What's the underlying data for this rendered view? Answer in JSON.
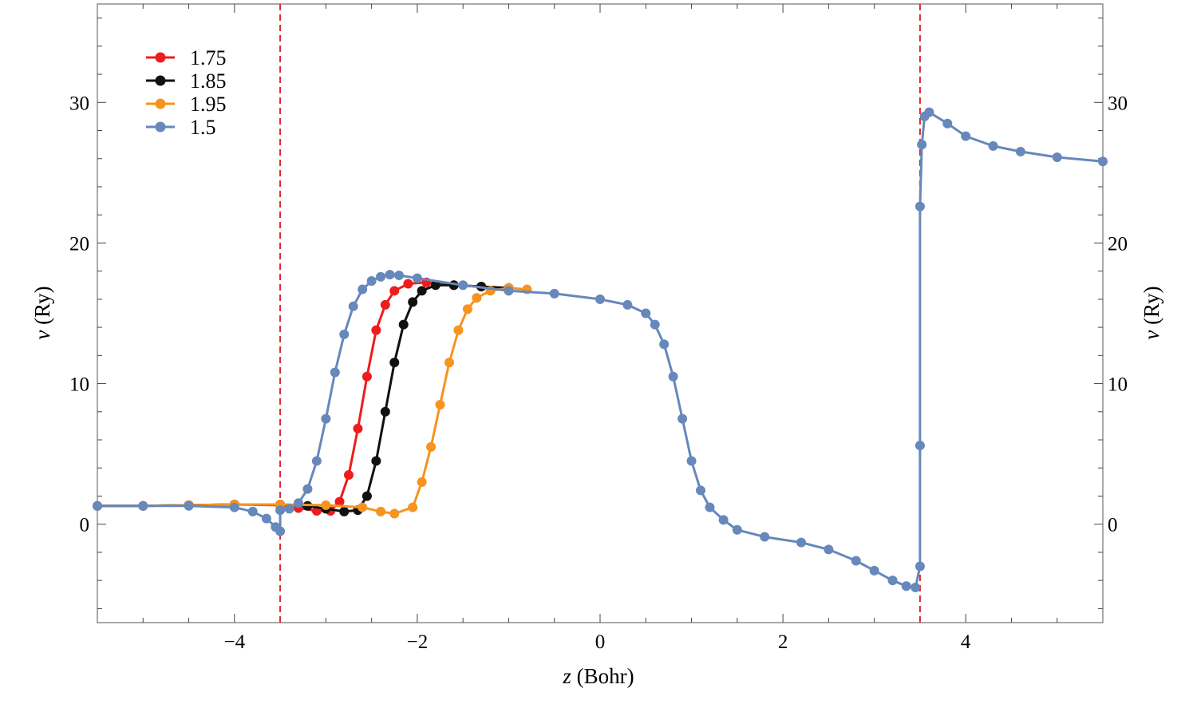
{
  "chart_data": {
    "type": "line",
    "xlabel_var": "z",
    "xlabel_unit": " (Bohr)",
    "ylabel_var": "v",
    "ylabel_unit": " (Ry)",
    "xlim": [
      -5.5,
      5.5
    ],
    "ylim": [
      -7,
      37
    ],
    "x_ticks": [
      -4,
      -2,
      0,
      2,
      4
    ],
    "x_tick_labels": [
      "−4",
      "−2",
      "0",
      "2",
      "4"
    ],
    "y_ticks": [
      0,
      10,
      20,
      30
    ],
    "y_tick_labels": [
      "0",
      "10",
      "20",
      "30"
    ],
    "grid": false,
    "legend_position": "top-left",
    "vlines": [
      -3.5,
      3.5
    ],
    "vline_color": "#e0262b",
    "series": [
      {
        "name": "1.75",
        "color": "#ee1c1c",
        "x": [
          -5.5,
          -5.0,
          -4.5,
          -4.0,
          -3.5,
          -3.3,
          -3.1,
          -2.95,
          -2.85,
          -2.75,
          -2.65,
          -2.55,
          -2.45,
          -2.35,
          -2.25,
          -2.1,
          -1.9,
          -1.6,
          -1.3,
          -1.0
        ],
        "y": [
          1.3,
          1.3,
          1.35,
          1.4,
          1.35,
          1.15,
          0.95,
          0.95,
          1.6,
          3.5,
          6.8,
          10.5,
          13.8,
          15.6,
          16.6,
          17.1,
          17.2,
          17.0,
          16.9,
          16.8
        ]
      },
      {
        "name": "1.85",
        "color": "#111111",
        "x": [
          -5.5,
          -5.0,
          -4.5,
          -4.0,
          -3.5,
          -3.2,
          -3.0,
          -2.8,
          -2.65,
          -2.55,
          -2.45,
          -2.35,
          -2.25,
          -2.15,
          -2.05,
          -1.95,
          -1.8,
          -1.6,
          -1.3,
          -1.0
        ],
        "y": [
          1.3,
          1.3,
          1.35,
          1.4,
          1.4,
          1.3,
          1.1,
          0.9,
          1.0,
          2.0,
          4.5,
          8.0,
          11.5,
          14.2,
          15.8,
          16.6,
          17.0,
          17.0,
          16.9,
          16.8
        ]
      },
      {
        "name": "1.95",
        "color": "#f7931e",
        "x": [
          -5.5,
          -5.0,
          -4.5,
          -4.0,
          -3.5,
          -3.0,
          -2.6,
          -2.4,
          -2.25,
          -2.05,
          -1.95,
          -1.85,
          -1.75,
          -1.65,
          -1.55,
          -1.45,
          -1.35,
          -1.2,
          -1.0,
          -0.8
        ],
        "y": [
          1.3,
          1.3,
          1.35,
          1.4,
          1.4,
          1.35,
          1.2,
          0.9,
          0.75,
          1.2,
          3.0,
          5.5,
          8.5,
          11.5,
          13.8,
          15.3,
          16.1,
          16.6,
          16.8,
          16.7
        ]
      },
      {
        "name": "1.5",
        "color": "#6688bb",
        "x": [
          -5.5,
          -5.0,
          -4.5,
          -4.0,
          -3.8,
          -3.65,
          -3.55,
          -3.5,
          -3.5,
          -3.4,
          -3.3,
          -3.2,
          -3.1,
          -3.0,
          -2.9,
          -2.8,
          -2.7,
          -2.6,
          -2.5,
          -2.4,
          -2.3,
          -2.2,
          -2.0,
          -1.5,
          -1.0,
          -0.5,
          0.0,
          0.3,
          0.5,
          0.6,
          0.7,
          0.8,
          0.9,
          1.0,
          1.1,
          1.2,
          1.35,
          1.5,
          1.8,
          2.2,
          2.5,
          2.8,
          3.0,
          3.2,
          3.35,
          3.45,
          3.5,
          3.5,
          3.5,
          3.52,
          3.55,
          3.6,
          3.8,
          4.0,
          4.3,
          4.6,
          5.0,
          5.5
        ],
        "y": [
          1.3,
          1.3,
          1.3,
          1.2,
          0.9,
          0.4,
          -0.2,
          -0.5,
          1.0,
          1.1,
          1.5,
          2.5,
          4.5,
          7.5,
          10.8,
          13.5,
          15.5,
          16.7,
          17.3,
          17.6,
          17.75,
          17.7,
          17.5,
          17.0,
          16.6,
          16.4,
          16.0,
          15.6,
          15.0,
          14.2,
          12.8,
          10.5,
          7.5,
          4.5,
          2.4,
          1.2,
          0.3,
          -0.4,
          -0.9,
          -1.3,
          -1.8,
          -2.6,
          -3.3,
          -4.0,
          -4.4,
          -4.5,
          -3.0,
          5.6,
          22.6,
          27.0,
          29.0,
          29.3,
          28.5,
          27.6,
          26.9,
          26.5,
          26.1,
          25.8
        ]
      }
    ]
  }
}
